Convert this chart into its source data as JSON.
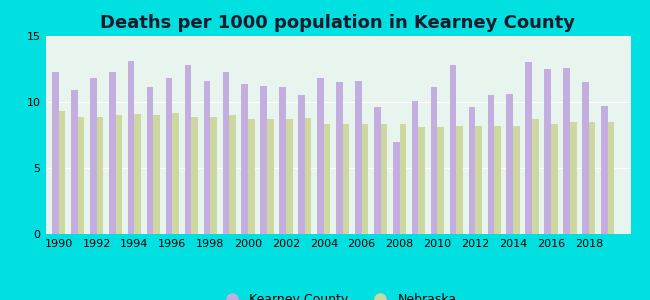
{
  "title": "Deaths per 1000 population in Kearney County",
  "background_color": "#00e0e0",
  "plot_bg": "#e8f5ee",
  "years": [
    1990,
    1991,
    1992,
    1993,
    1994,
    1995,
    1996,
    1997,
    1998,
    1999,
    2000,
    2001,
    2002,
    2003,
    2004,
    2005,
    2006,
    2007,
    2008,
    2009,
    2010,
    2011,
    2012,
    2013,
    2014,
    2015,
    2016,
    2017,
    2018,
    2019
  ],
  "kearney": [
    12.3,
    10.9,
    11.8,
    12.3,
    13.1,
    11.1,
    11.8,
    12.8,
    11.6,
    12.3,
    11.4,
    11.2,
    11.1,
    10.5,
    11.8,
    11.5,
    11.6,
    9.6,
    7.0,
    10.1,
    11.1,
    12.8,
    9.6,
    10.5,
    10.6,
    13.0,
    12.5,
    12.6,
    11.5,
    9.7
  ],
  "nebraska": [
    9.3,
    8.9,
    8.9,
    9.0,
    9.1,
    9.0,
    9.2,
    8.9,
    8.9,
    9.0,
    8.7,
    8.7,
    8.7,
    8.8,
    8.3,
    8.3,
    8.3,
    8.3,
    8.3,
    8.1,
    8.1,
    8.2,
    8.2,
    8.2,
    8.2,
    8.7,
    8.3,
    8.5,
    8.5,
    8.5
  ],
  "kearney_color": "#c4aee0",
  "nebraska_color": "#ccd8a0",
  "ylim": [
    0,
    15
  ],
  "yticks": [
    0,
    5,
    10,
    15
  ],
  "xticks": [
    1990,
    1992,
    1994,
    1996,
    1998,
    2000,
    2002,
    2004,
    2006,
    2008,
    2010,
    2012,
    2014,
    2016,
    2018
  ],
  "title_fontsize": 13,
  "tick_fontsize": 8,
  "legend_fontsize": 9,
  "bar_width": 0.35
}
